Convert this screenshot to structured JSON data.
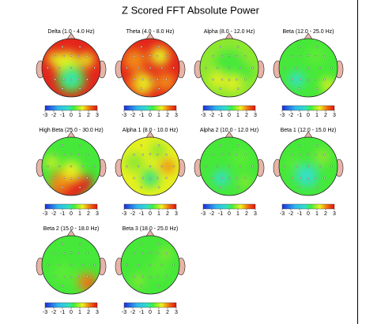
{
  "title": "Z Scored FFT Absolute Power",
  "maps": [
    {
      "title": "Delta (1.0 - 4.0 Hz)"
    },
    {
      "title": "Theta (4.0 - 8.0 Hz)"
    },
    {
      "title": "Alpha (8.0 - 12.0 Hz)"
    },
    {
      "title": "Beta (12.0 - 25.0 Hz)"
    },
    {
      "title": "High Beta (25.0 - 30.0 Hz)"
    },
    {
      "title": "Alpha 1 (8.0 - 10.0 Hz)"
    },
    {
      "title": "Alpha 2 (10.0 - 12.0 Hz)"
    },
    {
      "title": "Beta 1 (12.0 - 15.0 Hz)"
    },
    {
      "title": "Beta 2 (15.0 - 18.0 Hz)"
    },
    {
      "title": "Beta 3 (18.0 - 25.0 Hz)"
    }
  ],
  "scale": {
    "ticks": [
      -3,
      -2,
      -1,
      0,
      1,
      2,
      3
    ]
  }
}
